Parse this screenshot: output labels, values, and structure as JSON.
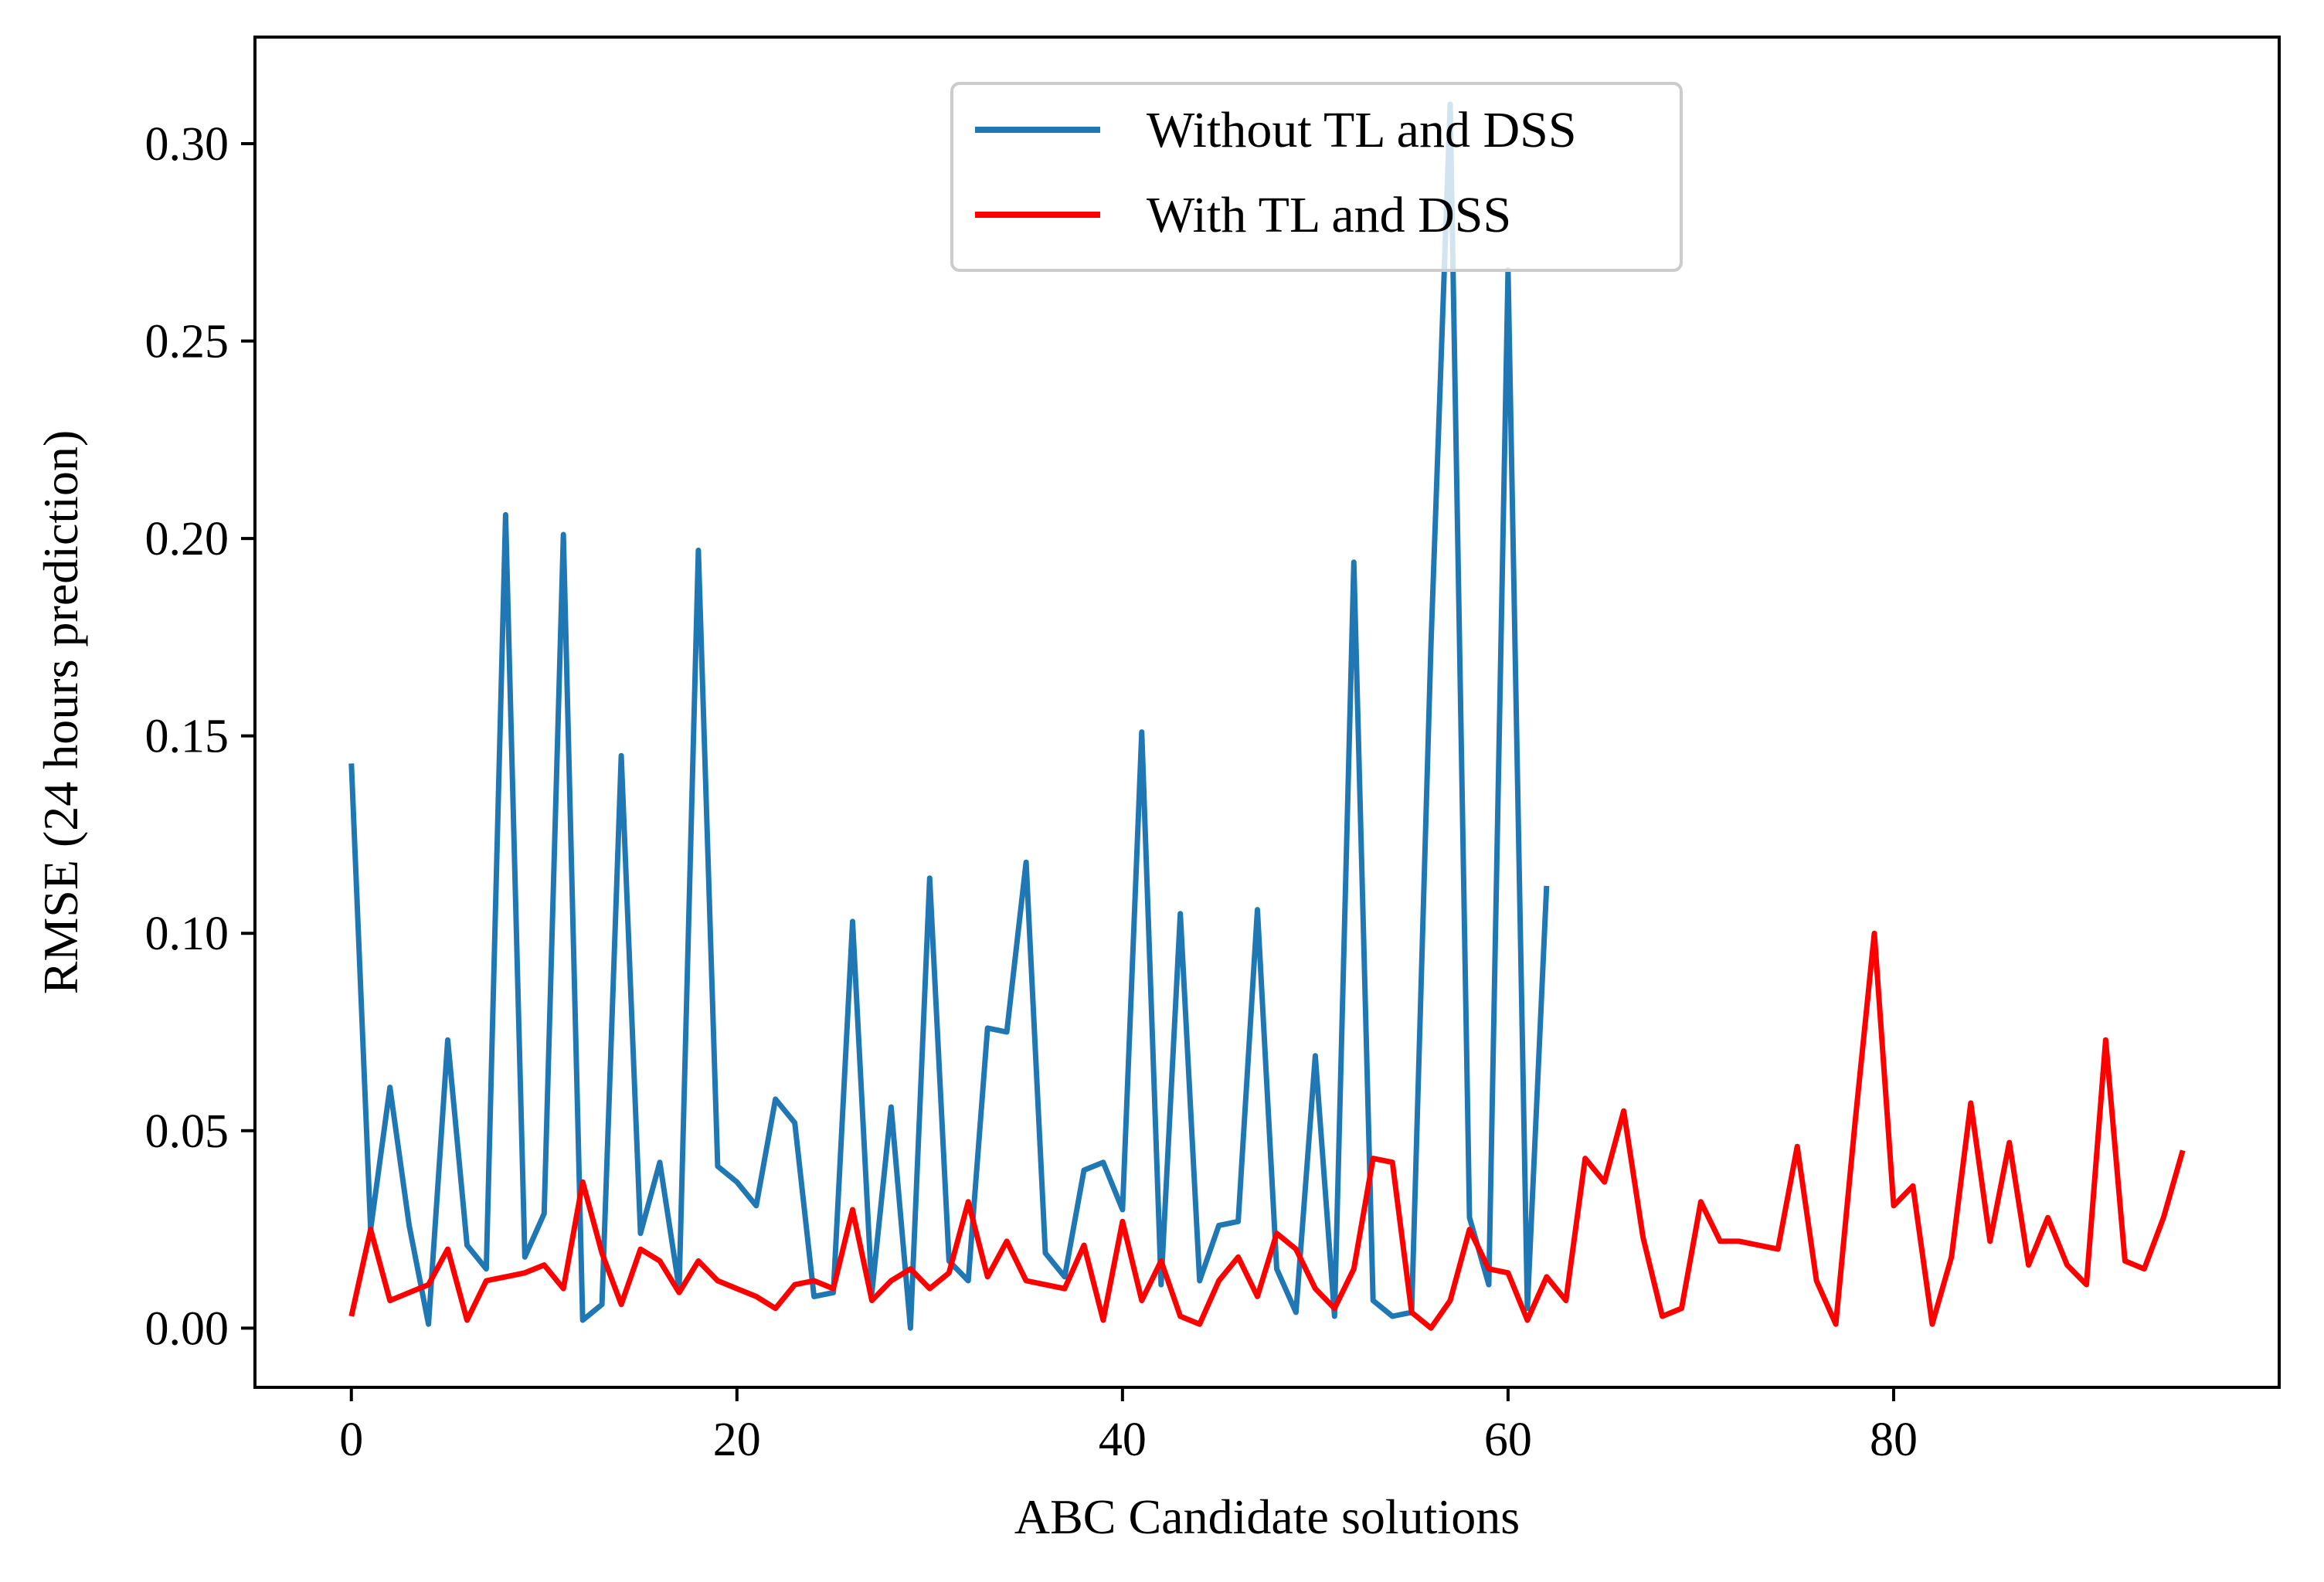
{
  "chart_data": {
    "type": "line",
    "title": "",
    "xlabel": "ABC Candidate solutions",
    "ylabel": "RMSE (24 hours prediction)",
    "xlim": [
      -5,
      100
    ],
    "ylim": [
      -0.015,
      0.327
    ],
    "xticks": [
      0,
      20,
      40,
      60,
      80
    ],
    "xtick_labels": [
      "0",
      "20",
      "40",
      "60",
      "80"
    ],
    "yticks": [
      0,
      0.05,
      0.1,
      0.15,
      0.2,
      0.25,
      0.3
    ],
    "ytick_labels": [
      "0.00",
      "0.05",
      "0.10",
      "0.15",
      "0.20",
      "0.25",
      "0.30"
    ],
    "grid": false,
    "legend_position": "top-center",
    "series": [
      {
        "name": "Without TL and DSS",
        "color": "#1f77b4",
        "values": [
          0.143,
          0.025,
          0.061,
          0.026,
          0.001,
          0.073,
          0.021,
          0.015,
          0.206,
          0.018,
          0.029,
          0.201,
          0.002,
          0.006,
          0.145,
          0.024,
          0.042,
          0.01,
          0.197,
          0.041,
          0.037,
          0.031,
          0.058,
          0.052,
          0.008,
          0.009,
          0.103,
          0.009,
          0.056,
          0.0,
          0.114,
          0.017,
          0.012,
          0.076,
          0.075,
          0.118,
          0.019,
          0.013,
          0.04,
          0.042,
          0.03,
          0.151,
          0.011,
          0.105,
          0.012,
          0.026,
          0.027,
          0.106,
          0.015,
          0.004,
          0.069,
          0.003,
          0.194,
          0.007,
          0.003,
          0.004,
          0.173,
          0.31,
          0.028,
          0.011,
          0.268,
          0.005,
          0.112
        ]
      },
      {
        "name": "With TL and DSS",
        "color": "#ff0000",
        "values": [
          0.003,
          0.025,
          0.007,
          0.009,
          0.011,
          0.02,
          0.002,
          0.012,
          0.013,
          0.014,
          0.016,
          0.01,
          0.037,
          0.019,
          0.006,
          0.02,
          0.017,
          0.009,
          0.017,
          0.012,
          0.01,
          0.008,
          0.005,
          0.011,
          0.012,
          0.01,
          0.03,
          0.007,
          0.012,
          0.015,
          0.01,
          0.014,
          0.032,
          0.013,
          0.022,
          0.012,
          0.011,
          0.01,
          0.021,
          0.002,
          0.027,
          0.007,
          0.017,
          0.003,
          0.001,
          0.012,
          0.018,
          0.008,
          0.024,
          0.02,
          0.01,
          0.005,
          0.015,
          0.043,
          0.042,
          0.004,
          0.0,
          0.007,
          0.025,
          0.015,
          0.014,
          0.002,
          0.013,
          0.007,
          0.043,
          0.037,
          0.055,
          0.023,
          0.003,
          0.005,
          0.032,
          0.022,
          0.022,
          0.021,
          0.02,
          0.046,
          0.012,
          0.001,
          0.052,
          0.1,
          0.031,
          0.036,
          0.001,
          0.018,
          0.057,
          0.022,
          0.047,
          0.016,
          0.028,
          0.016,
          0.011,
          0.073,
          0.017,
          0.015,
          0.028,
          0.045
        ]
      }
    ]
  }
}
